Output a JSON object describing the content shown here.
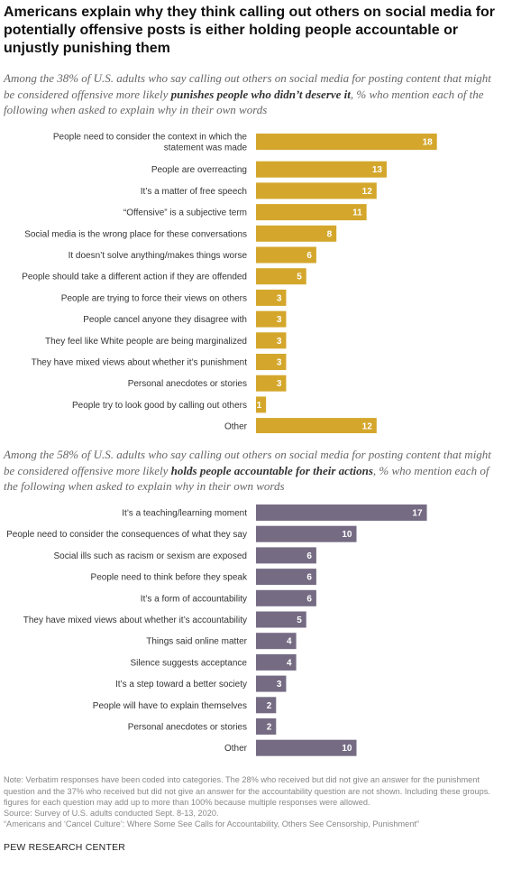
{
  "title": "Americans explain why they think calling out others on social media for potentially offensive posts is either holding people accountable or unjustly punishing them",
  "subtitle1": {
    "before": "Among the 38% of U.S. adults who say calling out others on social media for posting content that might be considered offensive more likely ",
    "emphasis": "punishes people who didn’t deserve it",
    "after": ", % who mention each of the following when asked to explain why in their own words"
  },
  "subtitle2": {
    "before": "Among the 58% of U.S. adults who say calling out others on social media for posting content that might be considered offensive more likely ",
    "emphasis": "holds people accountable for their actions",
    "after": ", % who mention each of the following when asked to explain why in their own words"
  },
  "colors": {
    "punishment": "#d4a72c",
    "accountability": "#756c84"
  },
  "chart_data": [
    {
      "type": "bar",
      "orientation": "horizontal",
      "categories": [
        [
          "People need to consider the context in which the",
          "statement was made"
        ],
        [
          "People are overreacting"
        ],
        [
          "It’s a matter of free speech"
        ],
        [
          "“Offensive” is a subjective term"
        ],
        [
          "Social media is the wrong place for these conversations"
        ],
        [
          "It doesn’t solve anything/makes things worse"
        ],
        [
          "People should take a different action if they are offended"
        ],
        [
          "People are trying to force their views on others"
        ],
        [
          "People cancel anyone they disagree with"
        ],
        [
          "They feel like White people are being marginalized"
        ],
        [
          "They have mixed views about whether it’s punishment"
        ],
        [
          "Personal anecdotes or stories"
        ],
        [
          "People try to look good by calling out others"
        ],
        [
          "Other"
        ]
      ],
      "values": [
        18,
        13,
        12,
        11,
        8,
        6,
        5,
        3,
        3,
        3,
        3,
        3,
        1,
        12
      ]
    },
    {
      "type": "bar",
      "orientation": "horizontal",
      "categories": [
        [
          "It’s a teaching/learning moment"
        ],
        [
          "People need to consider the consequences of what they say"
        ],
        [
          "Social ills such as racism or sexism are exposed"
        ],
        [
          "People need to think before they speak"
        ],
        [
          "It’s a form of accountability"
        ],
        [
          "They have mixed views about whether it’s accountability"
        ],
        [
          "Things said online matter"
        ],
        [
          "Silence suggests acceptance"
        ],
        [
          "It’s a step toward a better society"
        ],
        [
          "People will have to explain themselves"
        ],
        [
          "Personal anecdotes or stories"
        ],
        [
          "Other"
        ]
      ],
      "values": [
        17,
        10,
        6,
        6,
        6,
        5,
        4,
        4,
        3,
        2,
        2,
        10
      ]
    }
  ],
  "note": "Note: Verbatim responses have been coded into categories. The 28% who received but did not give an answer for the punishment question and the 37% who received but did not give an answer for the accountability question are not shown. Including these groups. figures for each question may add up to more than 100% because multiple responses were allowed.",
  "source": "Source: Survey of U.S. adults conducted Sept. 8-13, 2020.",
  "report": "“Americans and ‘Cancel Culture’: Where Some See Calls for Accountability, Others See Censorship, Punishment”",
  "organization": "PEW RESEARCH CENTER"
}
